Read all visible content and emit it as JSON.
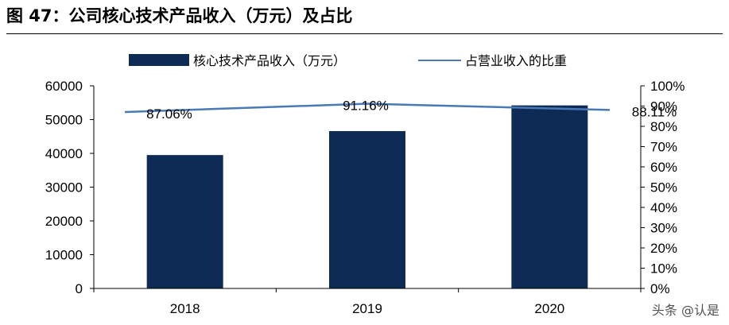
{
  "figure": {
    "title": "图 47：公司核心技术产品收入（万元）及占比",
    "watermark": "头条 @认是"
  },
  "colors": {
    "bar": "#0d2b55",
    "line": "#4a7ab5",
    "axis": "#000000"
  },
  "chart_data": {
    "type": "bar",
    "categories": [
      "2018",
      "2019",
      "2020"
    ],
    "series": [
      {
        "name": "核心技术产品收入（万元）",
        "type": "bar",
        "axis": "left",
        "values": [
          39500,
          46600,
          54200
        ]
      },
      {
        "name": "占营业收入的比重",
        "type": "line",
        "axis": "right",
        "values": [
          87.06,
          91.16,
          88.11
        ],
        "labels": [
          "87.06%",
          "91.16%",
          "88.11%"
        ]
      }
    ],
    "ylim_left": [
      0,
      60000
    ],
    "yticks_left": [
      "0",
      "10000",
      "20000",
      "30000",
      "40000",
      "50000",
      "60000"
    ],
    "ylim_right": [
      0,
      100
    ],
    "yticks_right": [
      "0%",
      "10%",
      "20%",
      "30%",
      "40%",
      "50%",
      "60%",
      "70%",
      "80%",
      "90%",
      "100%"
    ],
    "legend_position": "top",
    "grid": false
  }
}
